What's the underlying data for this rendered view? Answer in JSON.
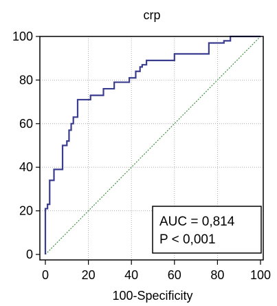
{
  "chart_data": {
    "type": "line",
    "title": "crp",
    "xlabel": "100-Specificity",
    "ylabel": "",
    "xlim": [
      0,
      100
    ],
    "ylim": [
      0,
      100
    ],
    "xticks": [
      "0",
      "20",
      "40",
      "60",
      "80",
      "100"
    ],
    "yticks": [
      "0",
      "20",
      "40",
      "60",
      "80",
      "100"
    ],
    "grid": true,
    "series": [
      {
        "name": "",
        "color": "#3a3c8f",
        "style": "step",
        "points": [
          [
            0,
            0
          ],
          [
            0,
            21
          ],
          [
            1,
            21
          ],
          [
            1,
            23
          ],
          [
            2,
            23
          ],
          [
            2,
            34
          ],
          [
            4,
            34
          ],
          [
            4,
            39
          ],
          [
            8,
            39
          ],
          [
            8,
            50
          ],
          [
            10,
            50
          ],
          [
            10,
            52
          ],
          [
            11,
            52
          ],
          [
            11,
            57
          ],
          [
            12,
            57
          ],
          [
            12,
            60
          ],
          [
            13,
            60
          ],
          [
            13,
            63
          ],
          [
            15,
            63
          ],
          [
            15,
            71
          ],
          [
            21,
            71
          ],
          [
            21,
            73
          ],
          [
            27,
            73
          ],
          [
            27,
            76
          ],
          [
            32,
            76
          ],
          [
            32,
            79
          ],
          [
            39,
            79
          ],
          [
            39,
            81
          ],
          [
            42,
            81
          ],
          [
            42,
            84
          ],
          [
            44,
            84
          ],
          [
            44,
            86
          ],
          [
            45,
            86
          ],
          [
            45,
            87
          ],
          [
            47,
            87
          ],
          [
            47,
            89
          ],
          [
            60,
            89
          ],
          [
            60,
            92
          ],
          [
            76,
            92
          ],
          [
            76,
            97
          ],
          [
            83,
            97
          ],
          [
            83,
            98
          ],
          [
            86,
            98
          ],
          [
            86,
            100
          ],
          [
            100,
            100
          ]
        ]
      },
      {
        "name": "",
        "color": "#2a8a2a",
        "style": "dotted",
        "points": [
          [
            0,
            0
          ],
          [
            100,
            100
          ]
        ]
      }
    ],
    "annotations": [
      "AUC = 0,814",
      "P < 0,001"
    ]
  }
}
